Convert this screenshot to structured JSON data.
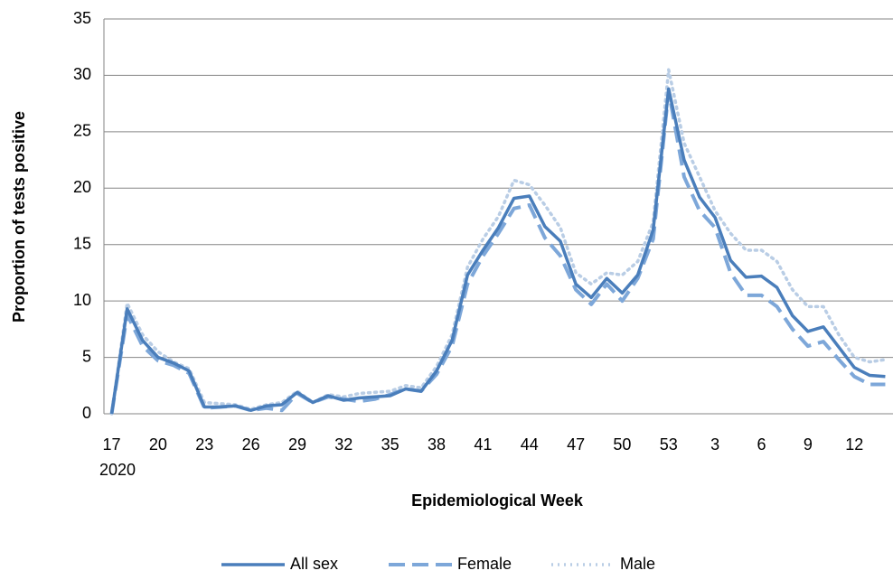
{
  "chart_data": {
    "type": "line",
    "x_label": "Epidemiological Week",
    "y_label": "Proportion of tests positive",
    "categories": [
      "17",
      null,
      null,
      "20",
      null,
      null,
      "23",
      null,
      null,
      "26",
      null,
      null,
      "29",
      null,
      null,
      "32",
      null,
      null,
      "35",
      null,
      null,
      "38",
      null,
      null,
      "41",
      null,
      null,
      "44",
      null,
      null,
      "47",
      null,
      null,
      "50",
      null,
      null,
      "53",
      null,
      null,
      "3",
      null,
      null,
      "6",
      null,
      null,
      "9",
      null,
      null,
      "12",
      null,
      null
    ],
    "x_sublabel": "2020",
    "series": [
      {
        "name": "All sex",
        "color": "#4a7ebb",
        "style": "solid",
        "values": [
          0,
          9.3,
          6.5,
          5,
          4.5,
          3.8,
          0.6,
          0.6,
          0.7,
          0.3,
          0.7,
          0.8,
          1.9,
          1.0,
          1.6,
          1.2,
          1.4,
          1.5,
          1.6,
          2.2,
          2.0,
          3.8,
          6.5,
          12.3,
          14.5,
          16.5,
          19.1,
          19.3,
          16.6,
          15.3,
          11.5,
          10.3,
          12.0,
          10.7,
          12.3,
          16.3,
          28.8,
          22.5,
          19.2,
          17.4,
          13.6,
          12.1,
          12.2,
          11.2,
          8.7,
          7.3,
          7.7,
          5.9,
          4.1,
          3.4,
          3.3
        ]
      },
      {
        "name": "Female",
        "color": "#7da7d9",
        "style": "dashed",
        "values": [
          0,
          8.8,
          6.0,
          4.7,
          4.3,
          3.6,
          0.5,
          0.6,
          0.7,
          0.3,
          0.5,
          0.3,
          1.8,
          1.0,
          1.5,
          1.3,
          1.1,
          1.3,
          1.7,
          2.2,
          2.0,
          3.5,
          6.0,
          11.5,
          14.0,
          16.0,
          18.2,
          18.5,
          15.6,
          14.0,
          11.0,
          9.7,
          11.5,
          10.0,
          12.0,
          15.5,
          28.6,
          21.0,
          18.0,
          16.5,
          12.5,
          10.5,
          10.5,
          9.5,
          7.5,
          6.0,
          6.4,
          4.8,
          3.3,
          2.6,
          2.6
        ]
      },
      {
        "name": "Male",
        "color": "#b9cde5",
        "style": "dotted",
        "values": [
          0,
          9.8,
          7.0,
          5.5,
          4.6,
          4.0,
          1.0,
          0.9,
          0.8,
          0.4,
          0.8,
          1.0,
          2.0,
          1.0,
          1.7,
          1.5,
          1.8,
          1.9,
          2.0,
          2.5,
          2.3,
          4.2,
          7.0,
          13.0,
          15.5,
          17.5,
          20.7,
          20.3,
          18.5,
          16.5,
          12.5,
          11.5,
          12.5,
          12.3,
          13.5,
          17.0,
          30.5,
          24.0,
          21.0,
          18.0,
          16.0,
          14.5,
          14.5,
          13.5,
          11.0,
          9.5,
          9.5,
          7.0,
          5.0,
          4.6,
          4.8
        ]
      }
    ],
    "ylim": [
      0,
      35
    ],
    "yticks": [
      0,
      5,
      10,
      15,
      20,
      25,
      30,
      35
    ],
    "grid": true,
    "legend": "bottom"
  }
}
